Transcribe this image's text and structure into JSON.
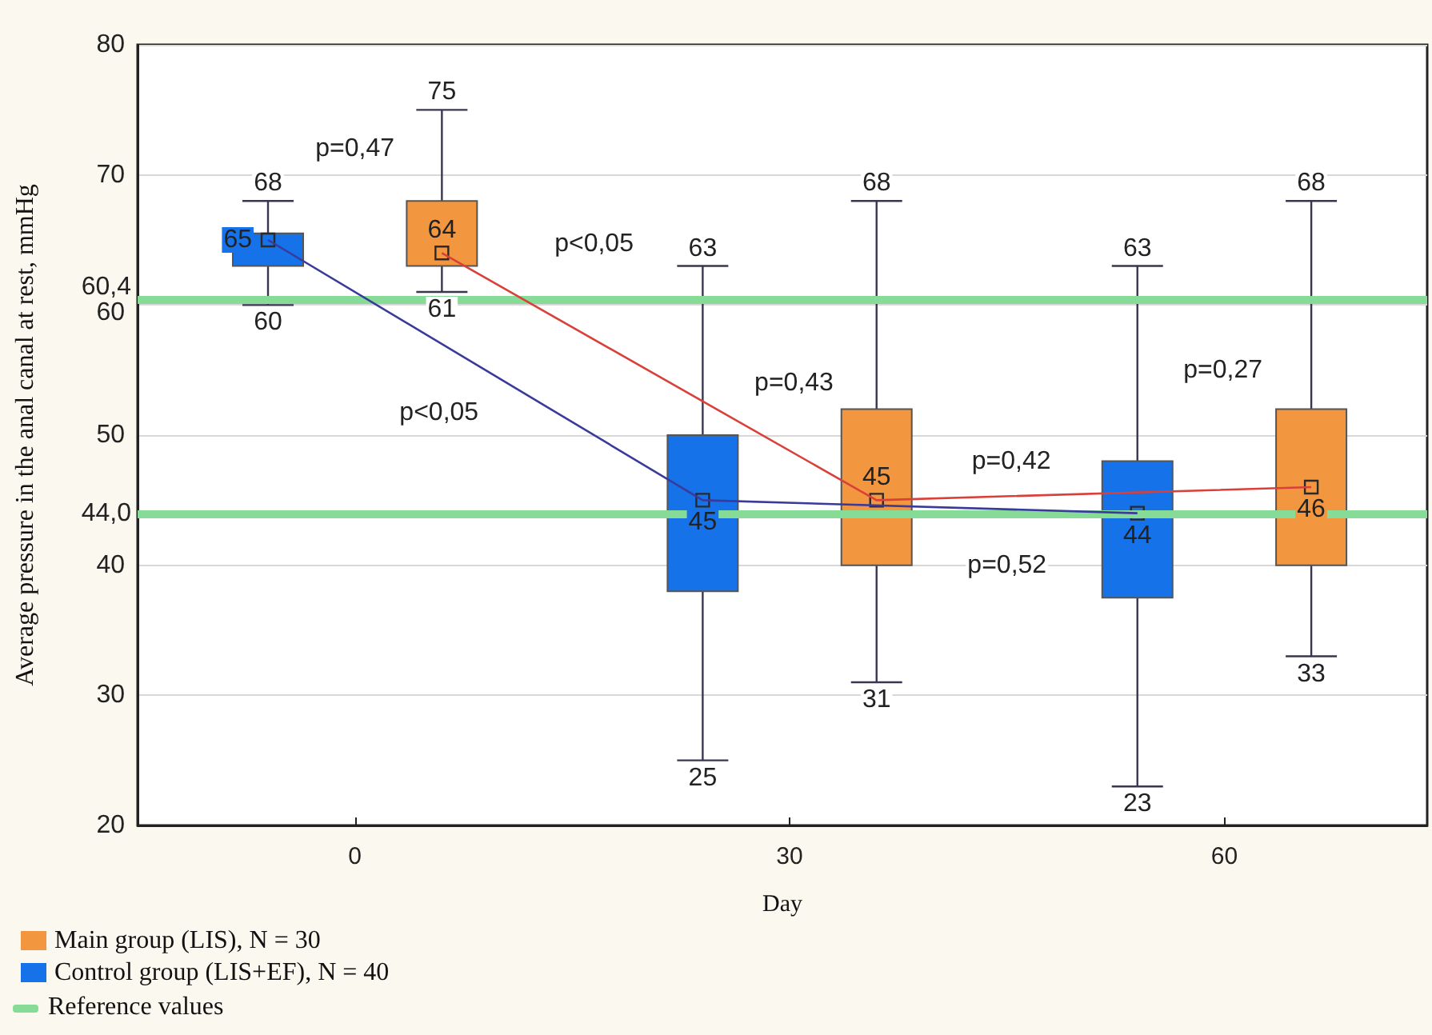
{
  "chart_data": {
    "type": "box",
    "xlabel": "Day",
    "ylabel": "Average pressure in the anal canal at rest, mmHg",
    "xlim": [
      -15,
      74
    ],
    "xticks": [
      0,
      30,
      60
    ],
    "ylim": [
      20,
      80
    ],
    "yticks": [
      20,
      30,
      40,
      50,
      60,
      70,
      80
    ],
    "grid": "y",
    "legend": "bottom left",
    "series": [
      {
        "name": "Main group (LIS), N = 30",
        "color": "#f39640",
        "x": [
          6,
          36,
          66
        ],
        "boxes": [
          {
            "low": 61,
            "q1": 63,
            "median": 64,
            "q3": 68,
            "high": 75
          },
          {
            "low": 31,
            "q1": 40,
            "median": 45,
            "q3": 52,
            "high": 68
          },
          {
            "low": 33,
            "q1": 40,
            "median": 46,
            "q3": 52,
            "high": 68
          }
        ]
      },
      {
        "name": "Control group (LIS+EF), N = 40",
        "color": "#1672e8",
        "x": [
          -6,
          24,
          54
        ],
        "boxes": [
          {
            "low": 60,
            "q1": 63,
            "median": 65,
            "q3": 65.5,
            "high": 68
          },
          {
            "low": 25,
            "q1": 38,
            "median": 45,
            "q3": 50,
            "high": 63
          },
          {
            "low": 23,
            "q1": 37.5,
            "median": 44,
            "q3": 48,
            "high": 63
          }
        ]
      },
      {
        "type": "line",
        "color": "#d9403a",
        "x": [
          6,
          36,
          66
        ],
        "values": [
          64,
          45,
          46
        ],
        "value_labels": [
          "64",
          "45",
          "46"
        ]
      },
      {
        "type": "line",
        "color": "#3a3a9c",
        "x": [
          -6,
          24,
          54
        ],
        "values": [
          65,
          45,
          44
        ],
        "value_labels": [
          "65",
          "45",
          "44"
        ]
      }
    ],
    "ref_lines": [
      {
        "axis": "y",
        "value": 60.4,
        "label": "60,4",
        "color": "#86dc96"
      },
      {
        "axis": "y",
        "value": 44.0,
        "label": "44,0",
        "color": "#86dc96"
      }
    ],
    "annotations": [
      "Reference values",
      "p=0,47",
      "p<0,05",
      "p<0,05",
      "p=0,43",
      "p=0,42",
      "p=0,52",
      "p=0,27",
      {
        "text": "75",
        "x": 6,
        "y": 75
      },
      {
        "text": "61",
        "x": 6,
        "y": 61
      },
      {
        "text": "68",
        "x": 36,
        "y": 68
      },
      {
        "text": "31",
        "x": 36,
        "y": 31
      },
      {
        "text": "68",
        "x": 66,
        "y": 68
      },
      {
        "text": "33",
        "x": 66,
        "y": 33
      },
      {
        "text": "68",
        "x": -6,
        "y": 68
      },
      {
        "text": "60",
        "x": -6,
        "y": 60
      },
      {
        "text": "63",
        "x": 24,
        "y": 63
      },
      {
        "text": "25",
        "x": 24,
        "y": 25
      },
      {
        "text": "63",
        "x": 54,
        "y": 63
      },
      {
        "text": "23",
        "x": 54,
        "y": 23
      }
    ]
  }
}
